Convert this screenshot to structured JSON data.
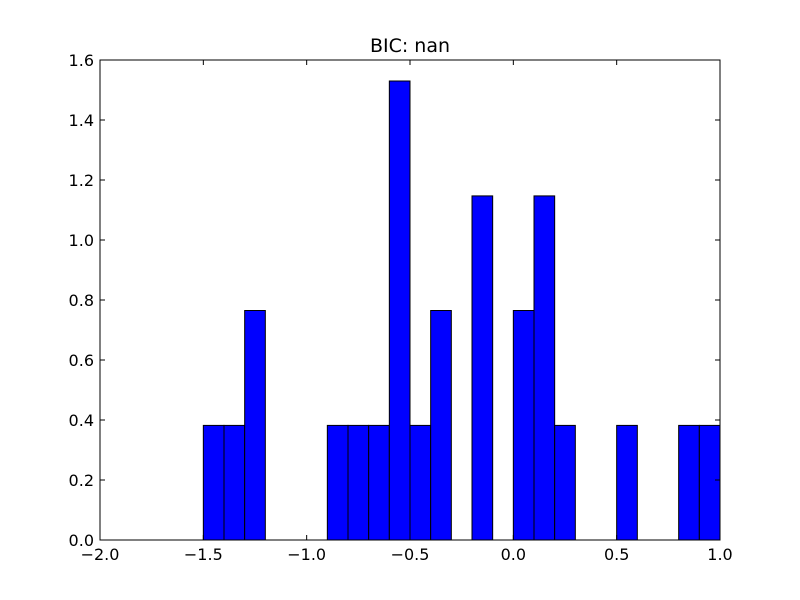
{
  "chart_data": {
    "type": "bar",
    "title": "BIC: nan",
    "xlabel": "",
    "ylabel": "",
    "xlim": [
      -2.0,
      1.0
    ],
    "ylim": [
      0.0,
      1.6
    ],
    "grid": false,
    "legend": "none",
    "bar_color": "#0000ff",
    "edge_color": "#000000",
    "bin_width": 0.1,
    "bins": [
      {
        "x0": -1.5,
        "x1": -1.4,
        "value": 0.382
      },
      {
        "x0": -1.4,
        "x1": -1.3,
        "value": 0.382
      },
      {
        "x0": -1.3,
        "x1": -1.2,
        "value": 0.765
      },
      {
        "x0": -0.9,
        "x1": -0.8,
        "value": 0.382
      },
      {
        "x0": -0.8,
        "x1": -0.7,
        "value": 0.382
      },
      {
        "x0": -0.7,
        "x1": -0.6,
        "value": 0.382
      },
      {
        "x0": -0.6,
        "x1": -0.5,
        "value": 1.53
      },
      {
        "x0": -0.5,
        "x1": -0.4,
        "value": 0.382
      },
      {
        "x0": -0.4,
        "x1": -0.3,
        "value": 0.765
      },
      {
        "x0": -0.2,
        "x1": -0.1,
        "value": 1.147
      },
      {
        "x0": 0.0,
        "x1": 0.1,
        "value": 0.765
      },
      {
        "x0": 0.1,
        "x1": 0.2,
        "value": 1.147
      },
      {
        "x0": 0.2,
        "x1": 0.3,
        "value": 0.382
      },
      {
        "x0": 0.5,
        "x1": 0.6,
        "value": 0.382
      },
      {
        "x0": 0.8,
        "x1": 0.9,
        "value": 0.382
      },
      {
        "x0": 0.9,
        "x1": 1.0,
        "value": 0.382
      }
    ],
    "x_ticks": [
      {
        "value": -2.0,
        "label": "−2.0"
      },
      {
        "value": -1.5,
        "label": "−1.5"
      },
      {
        "value": -1.0,
        "label": "−1.0"
      },
      {
        "value": -0.5,
        "label": "−0.5"
      },
      {
        "value": 0.0,
        "label": "0.0"
      },
      {
        "value": 0.5,
        "label": "0.5"
      },
      {
        "value": 1.0,
        "label": "1.0"
      }
    ],
    "y_ticks": [
      {
        "value": 0.0,
        "label": "0.0"
      },
      {
        "value": 0.2,
        "label": "0.2"
      },
      {
        "value": 0.4,
        "label": "0.4"
      },
      {
        "value": 0.6,
        "label": "0.6"
      },
      {
        "value": 0.8,
        "label": "0.8"
      },
      {
        "value": 1.0,
        "label": "1.0"
      },
      {
        "value": 1.2,
        "label": "1.2"
      },
      {
        "value": 1.4,
        "label": "1.4"
      },
      {
        "value": 1.6,
        "label": "1.6"
      }
    ]
  }
}
